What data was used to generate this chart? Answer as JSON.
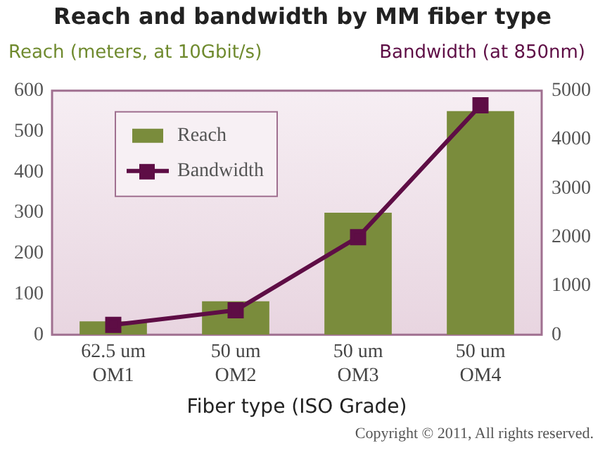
{
  "chart_data": {
    "type": "bar",
    "title": "Reach and bandwidth by MM fiber type",
    "xlabel": "Fiber type (ISO Grade)",
    "ylabel": "Reach (meters, at 10Gbit/s)",
    "y2label": "Bandwidth (at 850nm)",
    "categories": [
      "62.5 um\nOM1",
      "50 um\nOM2",
      "50 um\nOM3",
      "50 um\nOM4"
    ],
    "series": [
      {
        "name": "Reach",
        "color": "#7a8c3c",
        "values": [
          33,
          82,
          300,
          550
        ]
      },
      {
        "name": "Bandwidth",
        "type": "line",
        "axis": "y2",
        "color": "#5e0d45",
        "marker": "square",
        "values": [
          200,
          500,
          2000,
          4700
        ]
      }
    ],
    "ylim": [
      0,
      600
    ],
    "yticks": [
      0,
      100,
      200,
      300,
      400,
      500,
      600
    ],
    "y2lim": [
      0,
      5000
    ],
    "y2ticks": [
      0,
      1000,
      2000,
      3000,
      4000,
      5000
    ],
    "grid": false,
    "legend": "top left",
    "annotations": [
      "Copyright © 2011, All rights reserved."
    ]
  }
}
